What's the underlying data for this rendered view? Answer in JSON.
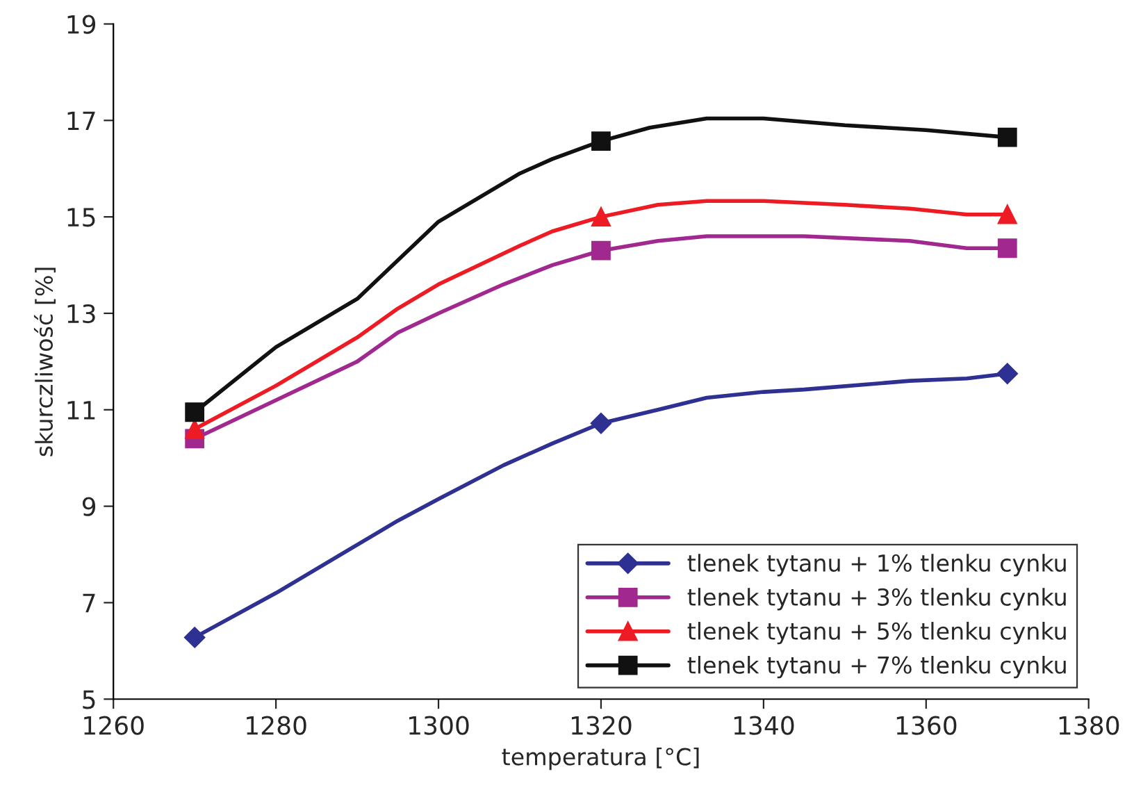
{
  "chart_data": {
    "type": "line",
    "xlabel": "temperatura [°C]",
    "ylabel": "skurczliwość [%]",
    "xlim": [
      1260,
      1380
    ],
    "xticks": [
      1260,
      1280,
      1300,
      1320,
      1340,
      1360,
      1380
    ],
    "ylim": [
      5,
      19
    ],
    "yticks": [
      5,
      7,
      9,
      11,
      13,
      15,
      17,
      19
    ],
    "grid": false,
    "legend": "bottom right",
    "series": [
      {
        "color": "#2e3192",
        "x": [
          1270,
          1280,
          1290,
          1295,
          1300,
          1308,
          1314,
          1320,
          1327,
          1333,
          1340,
          1345,
          1358,
          1365,
          1370
        ],
        "values": [
          6.28,
          7.2,
          8.2,
          8.7,
          9.15,
          9.85,
          10.3,
          10.72,
          11.0,
          11.25,
          11.37,
          11.42,
          11.6,
          11.65,
          11.75
        ]
      },
      {
        "color": "#a0288e",
        "x": [
          1270,
          1280,
          1290,
          1295,
          1300,
          1308,
          1314,
          1320,
          1327,
          1333,
          1345,
          1358,
          1365,
          1370
        ],
        "values": [
          10.4,
          11.2,
          12.0,
          12.6,
          13.0,
          13.6,
          14.0,
          14.3,
          14.5,
          14.6,
          14.6,
          14.5,
          14.35,
          14.35
        ]
      },
      {
        "color": "#ed1c24",
        "x": [
          1270,
          1280,
          1290,
          1295,
          1300,
          1310,
          1314,
          1320,
          1327,
          1333,
          1340,
          1350,
          1358,
          1365,
          1370
        ],
        "values": [
          10.6,
          11.5,
          12.5,
          13.1,
          13.6,
          14.4,
          14.7,
          15.0,
          15.25,
          15.33,
          15.33,
          15.25,
          15.17,
          15.05,
          15.05
        ]
      },
      {
        "color": "#111111",
        "x": [
          1270,
          1280,
          1290,
          1300,
          1310,
          1314,
          1320,
          1326,
          1333,
          1340,
          1350,
          1360,
          1370
        ],
        "values": [
          10.95,
          12.3,
          13.3,
          14.9,
          15.9,
          16.2,
          16.57,
          16.85,
          17.04,
          17.04,
          16.9,
          16.8,
          16.65
        ]
      },
      {
        "type": "scatter",
        "name": "tlenek tytanu + 1% tlenku cynku",
        "color": "#2e3192",
        "marker": "diamond",
        "line_style": "solid",
        "x": [
          1270,
          1320,
          1370
        ],
        "values": [
          6.28,
          10.72,
          11.75
        ]
      },
      {
        "type": "scatter",
        "name": "tlenek tytanu + 3% tlenku cynku",
        "color": "#a0288e",
        "marker": "square",
        "line_style": "solid",
        "x": [
          1270,
          1320,
          1370
        ],
        "values": [
          10.4,
          14.3,
          14.35
        ]
      },
      {
        "type": "scatter",
        "name": "tlenek tytanu + 5% tlenku cynku",
        "color": "#ed1c24",
        "marker": "triangle",
        "line_style": "solid",
        "x": [
          1270,
          1320,
          1370
        ],
        "values": [
          10.6,
          15.0,
          15.05
        ]
      },
      {
        "type": "scatter",
        "name": "tlenek tytanu + 7% tlenku cynku",
        "color": "#111111",
        "marker": "square",
        "line_style": "solid",
        "x": [
          1270,
          1320,
          1370
        ],
        "values": [
          10.95,
          16.57,
          16.65
        ]
      }
    ]
  }
}
